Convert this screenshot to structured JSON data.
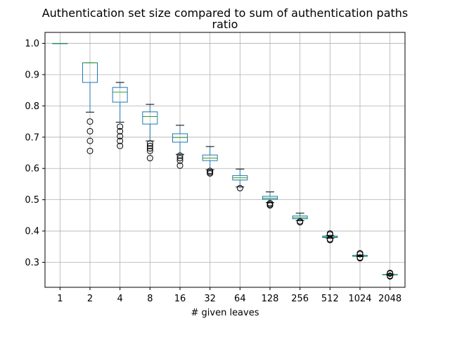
{
  "chart_data": {
    "type": "boxplot",
    "title": "Authentication set size compared to sum of authentication paths",
    "subtitle": "ratio",
    "xlabel": "# given leaves",
    "ylabel": "",
    "ylim": [
      0.22,
      1.035
    ],
    "y_ticks": [
      0.3,
      0.4,
      0.5,
      0.6,
      0.7,
      0.8,
      0.9,
      1.0
    ],
    "y_tick_labels": [
      "0.3",
      "0.4",
      "0.5",
      "0.6",
      "0.7",
      "0.8",
      "0.9",
      "1.0"
    ],
    "grid": true,
    "categories": [
      "1",
      "2",
      "4",
      "8",
      "16",
      "32",
      "64",
      "128",
      "256",
      "512",
      "1024",
      "2048"
    ],
    "boxes": [
      {
        "whisker_low": 1.0,
        "q1": 1.0,
        "median": 1.0,
        "q3": 1.0,
        "whisker_high": 1.0,
        "outliers": []
      },
      {
        "whisker_low": 0.78,
        "q1": 0.875,
        "median": 0.938,
        "q3": 0.938,
        "whisker_high": 0.938,
        "outliers": [
          0.75,
          0.719,
          0.688,
          0.656
        ]
      },
      {
        "whisker_low": 0.748,
        "q1": 0.812,
        "median": 0.844,
        "q3": 0.859,
        "whisker_high": 0.875,
        "outliers": [
          0.734,
          0.719,
          0.703,
          0.688,
          0.672
        ]
      },
      {
        "whisker_low": 0.688,
        "q1": 0.742,
        "median": 0.766,
        "q3": 0.781,
        "whisker_high": 0.805,
        "outliers": [
          0.68,
          0.672,
          0.664,
          0.656,
          0.633
        ]
      },
      {
        "whisker_low": 0.645,
        "q1": 0.684,
        "median": 0.699,
        "q3": 0.711,
        "whisker_high": 0.738,
        "outliers": [
          0.641,
          0.633,
          0.625,
          0.609
        ]
      },
      {
        "whisker_low": 0.596,
        "q1": 0.625,
        "median": 0.633,
        "q3": 0.643,
        "whisker_high": 0.67,
        "outliers": [
          0.592,
          0.588,
          0.584
        ]
      },
      {
        "whisker_low": 0.541,
        "q1": 0.563,
        "median": 0.57,
        "q3": 0.577,
        "whisker_high": 0.598,
        "outliers": [
          0.537
        ]
      },
      {
        "whisker_low": 0.491,
        "q1": 0.501,
        "median": 0.505,
        "q3": 0.511,
        "whisker_high": 0.525,
        "outliers": [
          0.489,
          0.485,
          0.482
        ]
      },
      {
        "whisker_low": 0.433,
        "q1": 0.439,
        "median": 0.443,
        "q3": 0.448,
        "whisker_high": 0.457,
        "outliers": [
          0.431,
          0.428
        ]
      },
      {
        "whisker_low": 0.377,
        "q1": 0.379,
        "median": 0.381,
        "q3": 0.384,
        "whisker_high": 0.386,
        "outliers": [
          0.392,
          0.389,
          0.374,
          0.371
        ]
      },
      {
        "whisker_low": 0.318,
        "q1": 0.319,
        "median": 0.32,
        "q3": 0.322,
        "whisker_high": 0.323,
        "outliers": [
          0.329,
          0.326,
          0.315,
          0.313
        ]
      },
      {
        "whisker_low": 0.259,
        "q1": 0.26,
        "median": 0.26,
        "q3": 0.261,
        "whisker_high": 0.262,
        "outliers": [
          0.266,
          0.264,
          0.257,
          0.255
        ]
      }
    ],
    "colors": {
      "box": "#1f77b4",
      "median": "#2ca02c",
      "whisker_cap": "#000000",
      "outlier": "#000000",
      "grid": "#b0b0b0",
      "spine": "#000000"
    }
  }
}
